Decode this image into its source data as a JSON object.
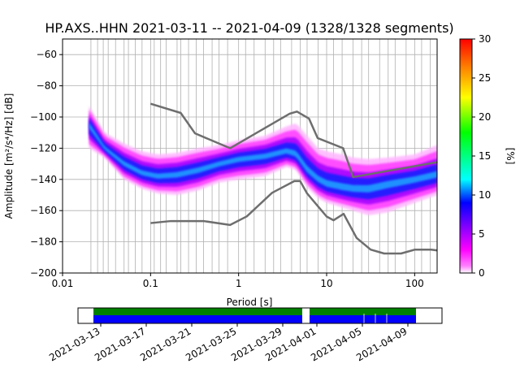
{
  "title": "HP.AXS..HHN   2021-03-11 -- 2021-04-09  (1328/1328 segments)",
  "chart_data": [
    {
      "type": "heatmap",
      "title": "HP.AXS..HHN   2021-03-11 -- 2021-04-09  (1328/1328 segments)",
      "xlabel": "Period [s]",
      "ylabel": "Amplitude [m²/s⁴/Hz] [dB]",
      "xscale": "log",
      "xlim": [
        0.01,
        180
      ],
      "ylim": [
        -200,
        -50
      ],
      "x_ticks": [
        {
          "value": 0.01,
          "label": "0.01"
        },
        {
          "value": 0.1,
          "label": "0.1"
        },
        {
          "value": 1,
          "label": "1"
        },
        {
          "value": 10,
          "label": "10"
        },
        {
          "value": 100,
          "label": "100"
        }
      ],
      "y_ticks": [
        {
          "value": -60,
          "label": "−60"
        },
        {
          "value": -80,
          "label": "−80"
        },
        {
          "value": -100,
          "label": "−100"
        },
        {
          "value": -120,
          "label": "−120"
        },
        {
          "value": -140,
          "label": "−140"
        },
        {
          "value": -160,
          "label": "−160"
        },
        {
          "value": -180,
          "label": "−180"
        },
        {
          "value": -200,
          "label": "−200"
        }
      ],
      "grid": true,
      "colorbar": {
        "label": "[%]",
        "range": [
          0,
          30
        ],
        "ticks": [
          {
            "value": 0,
            "label": "0"
          },
          {
            "value": 5,
            "label": "5"
          },
          {
            "value": 10,
            "label": "10"
          },
          {
            "value": 15,
            "label": "15"
          },
          {
            "value": 20,
            "label": "20"
          },
          {
            "value": 25,
            "label": "25"
          },
          {
            "value": 30,
            "label": "30"
          }
        ]
      },
      "psd_mode": [
        [
          0.02,
          -105
        ],
        [
          0.03,
          -120
        ],
        [
          0.05,
          -130
        ],
        [
          0.08,
          -136
        ],
        [
          0.12,
          -138
        ],
        [
          0.2,
          -137
        ],
        [
          0.35,
          -134
        ],
        [
          0.6,
          -130
        ],
        [
          1,
          -127
        ],
        [
          2,
          -125
        ],
        [
          3.5,
          -122
        ],
        [
          4.5,
          -124
        ],
        [
          6,
          -134
        ],
        [
          8,
          -140
        ],
        [
          10,
          -143
        ],
        [
          15,
          -145
        ],
        [
          20,
          -146
        ],
        [
          30,
          -146
        ],
        [
          50,
          -143
        ],
        [
          100,
          -140
        ],
        [
          180,
          -137
        ]
      ],
      "psd_envelope": [
        [
          0.02,
          -93,
          -120
        ],
        [
          0.03,
          -110,
          -126
        ],
        [
          0.05,
          -117,
          -140
        ],
        [
          0.08,
          -122,
          -146
        ],
        [
          0.12,
          -124,
          -149
        ],
        [
          0.2,
          -123,
          -150
        ],
        [
          0.35,
          -120,
          -147
        ],
        [
          0.6,
          -118,
          -142
        ],
        [
          1,
          -115,
          -140
        ],
        [
          2,
          -112,
          -138
        ],
        [
          3.5,
          -106,
          -132
        ],
        [
          4.5,
          -104,
          -134
        ],
        [
          6,
          -112,
          -145
        ],
        [
          8,
          -120,
          -152
        ],
        [
          10,
          -122,
          -155
        ],
        [
          15,
          -124,
          -158
        ],
        [
          20,
          -126,
          -160
        ],
        [
          30,
          -127,
          -163
        ],
        [
          50,
          -126,
          -161
        ],
        [
          100,
          -124,
          -155
        ],
        [
          180,
          -118,
          -150
        ]
      ],
      "high_noise_model": [
        [
          0.1,
          -91.5
        ],
        [
          0.22,
          -97.4
        ],
        [
          0.32,
          -110.5
        ],
        [
          0.8,
          -120
        ],
        [
          3.8,
          -97.9
        ],
        [
          4.6,
          -96.5
        ],
        [
          6.3,
          -101
        ],
        [
          7.9,
          -113.5
        ],
        [
          15.4,
          -120
        ],
        [
          20,
          -138.5
        ],
        [
          354.8,
          -126
        ]
      ],
      "low_noise_model": [
        [
          0.1,
          -168
        ],
        [
          0.17,
          -166.7
        ],
        [
          0.4,
          -166.7
        ],
        [
          0.8,
          -169.2
        ],
        [
          1.24,
          -163.7
        ],
        [
          2.4,
          -148.6
        ],
        [
          4.3,
          -141.1
        ],
        [
          5,
          -141.1
        ],
        [
          6,
          -149
        ],
        [
          10,
          -163.8
        ],
        [
          12,
          -166.2
        ],
        [
          15.6,
          -162.1
        ],
        [
          21.9,
          -177.5
        ],
        [
          31.6,
          -185
        ],
        [
          45,
          -187.5
        ],
        [
          70,
          -187.5
        ],
        [
          101,
          -185
        ],
        [
          154,
          -185
        ],
        [
          328,
          -187.5
        ]
      ],
      "grid_periods": [
        0.021,
        0.025,
        0.029,
        0.033,
        0.04,
        0.05,
        0.056,
        0.067,
        0.08,
        0.1,
        0.11,
        0.13,
        0.15,
        0.2,
        0.22,
        0.27,
        0.33,
        0.4,
        0.5,
        0.6,
        0.75,
        1,
        1.2,
        1.5,
        2,
        2.5,
        3,
        4,
        5,
        6,
        8,
        10,
        12,
        15,
        20,
        25,
        30,
        40,
        50,
        60,
        80,
        100,
        120,
        150
      ]
    },
    {
      "type": "bar",
      "description_role": "data availability",
      "x_ticks": [
        "2021-03-13",
        "2021-03-17",
        "2021-03-21",
        "2021-03-25",
        "2021-03-29",
        "2021-04-01",
        "2021-04-05",
        "2021-04-09"
      ],
      "xlim": [
        "2021-03-11",
        "2021-04-12"
      ],
      "top_row_color": "#008000",
      "bottom_row_color": "#0000ff",
      "coverage": [
        [
          "2021-03-12",
          "2021-03-31"
        ],
        [
          "2021-03-31",
          "2021-04-10"
        ]
      ],
      "gap_dates": [
        "2021-03-31",
        "2021-04-01"
      ],
      "tick_mark_dates": [
        "2021-04-05",
        "2021-04-06",
        "2021-04-07"
      ]
    }
  ]
}
